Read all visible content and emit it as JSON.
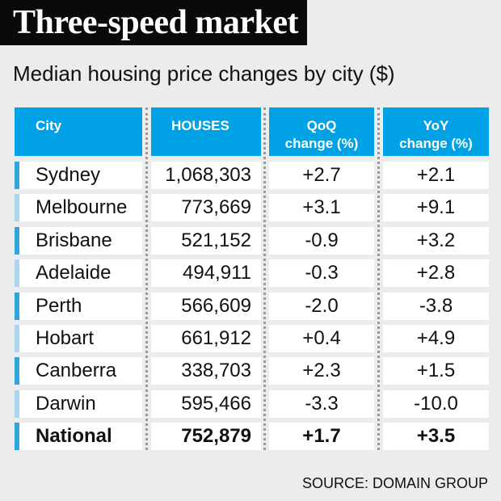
{
  "title": "Three-speed market",
  "subtitle": "Median housing price changes by city ($)",
  "source": "SOURCE: DOMAIN GROUP",
  "colors": {
    "header_bg": "#00a2e5",
    "accent_dark": "#2ea6dc",
    "accent_light": "#a9d7ee"
  },
  "chart_data": {
    "type": "table",
    "title": "Three-speed market",
    "subtitle": "Median housing price changes by city ($)",
    "columns": [
      {
        "line1": "City",
        "line2": ""
      },
      {
        "line1": "HOUSES",
        "line2": ""
      },
      {
        "line1": "QoQ",
        "line2": "change (%)"
      },
      {
        "line1": "YoY",
        "line2": "change (%)"
      }
    ],
    "rows": [
      {
        "city": "Sydney",
        "houses": "1,068,303",
        "qoq": "+2.7",
        "yoy": "+2.1"
      },
      {
        "city": "Melbourne",
        "houses": "773,669",
        "qoq": "+3.1",
        "yoy": "+9.1"
      },
      {
        "city": "Brisbane",
        "houses": "521,152",
        "qoq": "-0.9",
        "yoy": "+3.2"
      },
      {
        "city": "Adelaide",
        "houses": "494,911",
        "qoq": "-0.3",
        "yoy": "+2.8"
      },
      {
        "city": "Perth",
        "houses": "566,609",
        "qoq": "-2.0",
        "yoy": "-3.8"
      },
      {
        "city": "Hobart",
        "houses": "661,912",
        "qoq": "+0.4",
        "yoy": "+4.9"
      },
      {
        "city": "Canberra",
        "houses": "338,703",
        "qoq": "+2.3",
        "yoy": "+1.5"
      },
      {
        "city": "Darwin",
        "houses": "595,466",
        "qoq": "-3.3",
        "yoy": "-10.0"
      },
      {
        "city": "National",
        "houses": "752,879",
        "qoq": "+1.7",
        "yoy": "+3.5",
        "bold": true
      }
    ]
  }
}
